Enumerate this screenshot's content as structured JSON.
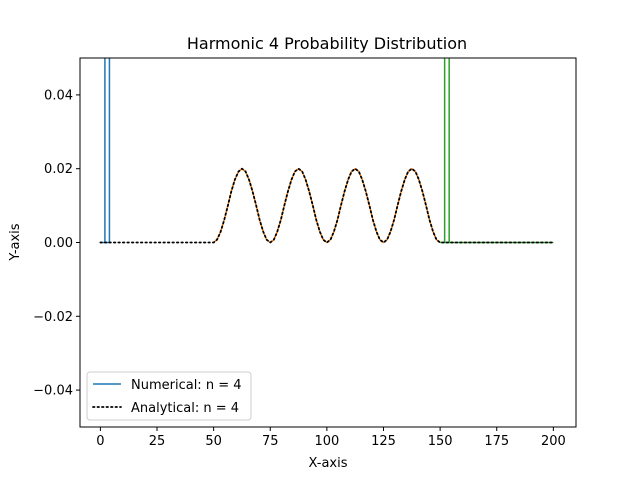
{
  "chart_data": {
    "type": "line",
    "title": "Harmonic 4 Probability Distribution",
    "xlabel": "X-axis",
    "ylabel": "Y-axis",
    "xlim": [
      -9,
      210
    ],
    "ylim": [
      -0.05,
      0.05
    ],
    "xticks": [
      0,
      25,
      50,
      75,
      100,
      125,
      150,
      175,
      200
    ],
    "yticks": [
      -0.04,
      -0.02,
      0.0,
      0.02,
      0.04
    ],
    "ytick_labels": [
      "−0.04",
      "−0.02",
      "0.00",
      "0.02",
      "0.04"
    ],
    "grid": false,
    "legend_position": "lower-left",
    "legend": [
      {
        "label": "Numerical: n = 4",
        "color": "#1f77b4",
        "style": "solid"
      },
      {
        "label": "Analytical: n = 4",
        "color": "#000000",
        "style": "dotted"
      }
    ],
    "series": [
      {
        "name": "Numerical: n = 4",
        "color": "#1f77b4",
        "style": "solid",
        "x": [
          0,
          2,
          2,
          2,
          4,
          4,
          4
        ],
        "y": [
          0.0,
          0.0,
          0.06,
          0.0,
          0.0,
          0.06,
          0.0
        ]
      },
      {
        "color": "#ff7f0e",
        "style": "solid",
        "x": [
          50,
          51.5,
          53.1,
          54.7,
          56.3,
          57.8,
          59.4,
          61.0,
          62.5,
          64.1,
          65.6,
          67.2,
          68.8,
          70.3,
          71.9,
          73.4,
          75.0,
          76.6,
          78.1,
          79.7,
          81.2,
          82.8,
          84.4,
          85.9,
          87.5,
          89.1,
          90.6,
          92.2,
          93.8,
          95.3,
          96.9,
          98.4,
          100.0,
          101.6,
          103.1,
          104.7,
          106.2,
          107.8,
          109.4,
          110.9,
          112.5,
          114.1,
          115.6,
          117.2,
          118.8,
          120.3,
          121.9,
          123.4,
          125.0,
          126.6,
          128.1,
          129.7,
          131.2,
          132.8,
          134.4,
          135.9,
          137.5,
          139.1,
          140.6,
          142.2,
          143.8,
          145.3,
          146.9,
          148.4,
          150.0
        ],
        "y": [
          0.0,
          0.00076,
          0.00293,
          0.00617,
          0.01,
          0.01383,
          0.01707,
          0.01924,
          0.02,
          0.01924,
          0.01707,
          0.01383,
          0.01,
          0.00617,
          0.00293,
          0.00076,
          0.0,
          0.00076,
          0.00293,
          0.00617,
          0.01,
          0.01383,
          0.01707,
          0.01924,
          0.02,
          0.01924,
          0.01707,
          0.01383,
          0.01,
          0.00617,
          0.00293,
          0.00076,
          0.0,
          0.00076,
          0.00293,
          0.00617,
          0.01,
          0.01383,
          0.01707,
          0.01924,
          0.02,
          0.01924,
          0.01707,
          0.01383,
          0.01,
          0.00617,
          0.00293,
          0.00076,
          0.0,
          0.00076,
          0.00293,
          0.00617,
          0.01,
          0.01383,
          0.01707,
          0.01924,
          0.02,
          0.01924,
          0.01707,
          0.01383,
          0.01,
          0.00617,
          0.00293,
          0.00076,
          0.0
        ]
      },
      {
        "color": "#2ca02c",
        "style": "solid",
        "x": [
          150,
          152,
          152,
          152,
          154,
          154,
          154,
          200
        ],
        "y": [
          0.0,
          0.0,
          0.06,
          0.0,
          0.0,
          0.06,
          0.0,
          0.0
        ]
      },
      {
        "name": "Analytical: n = 4",
        "color": "#000000",
        "style": "dotted",
        "x": [
          0,
          10,
          20,
          30,
          40,
          50,
          51.5,
          53.1,
          54.7,
          56.3,
          57.8,
          59.4,
          61.0,
          62.5,
          64.1,
          65.6,
          67.2,
          68.8,
          70.3,
          71.9,
          73.4,
          75.0,
          76.6,
          78.1,
          79.7,
          81.2,
          82.8,
          84.4,
          85.9,
          87.5,
          89.1,
          90.6,
          92.2,
          93.8,
          95.3,
          96.9,
          98.4,
          100.0,
          101.6,
          103.1,
          104.7,
          106.2,
          107.8,
          109.4,
          110.9,
          112.5,
          114.1,
          115.6,
          117.2,
          118.8,
          120.3,
          121.9,
          123.4,
          125.0,
          126.6,
          128.1,
          129.7,
          131.2,
          132.8,
          134.4,
          135.9,
          137.5,
          139.1,
          140.6,
          142.2,
          143.8,
          145.3,
          146.9,
          148.4,
          150.0,
          160,
          170,
          180,
          190,
          200
        ],
        "y": [
          0.0,
          0.0,
          0.0,
          0.0,
          0.0,
          0.0,
          0.00076,
          0.00293,
          0.00617,
          0.01,
          0.01383,
          0.01707,
          0.01924,
          0.02,
          0.01924,
          0.01707,
          0.01383,
          0.01,
          0.00617,
          0.00293,
          0.00076,
          0.0,
          0.00076,
          0.00293,
          0.00617,
          0.01,
          0.01383,
          0.01707,
          0.01924,
          0.02,
          0.01924,
          0.01707,
          0.01383,
          0.01,
          0.00617,
          0.00293,
          0.00076,
          0.0,
          0.00076,
          0.00293,
          0.00617,
          0.01,
          0.01383,
          0.01707,
          0.01924,
          0.02,
          0.01924,
          0.01707,
          0.01383,
          0.01,
          0.00617,
          0.00293,
          0.00076,
          0.0,
          0.00076,
          0.00293,
          0.00617,
          0.01,
          0.01383,
          0.01707,
          0.01924,
          0.02,
          0.01924,
          0.01707,
          0.01383,
          0.01,
          0.00617,
          0.00293,
          0.00076,
          0.0,
          0.0,
          0.0,
          0.0,
          0.0,
          0.0
        ]
      }
    ]
  }
}
